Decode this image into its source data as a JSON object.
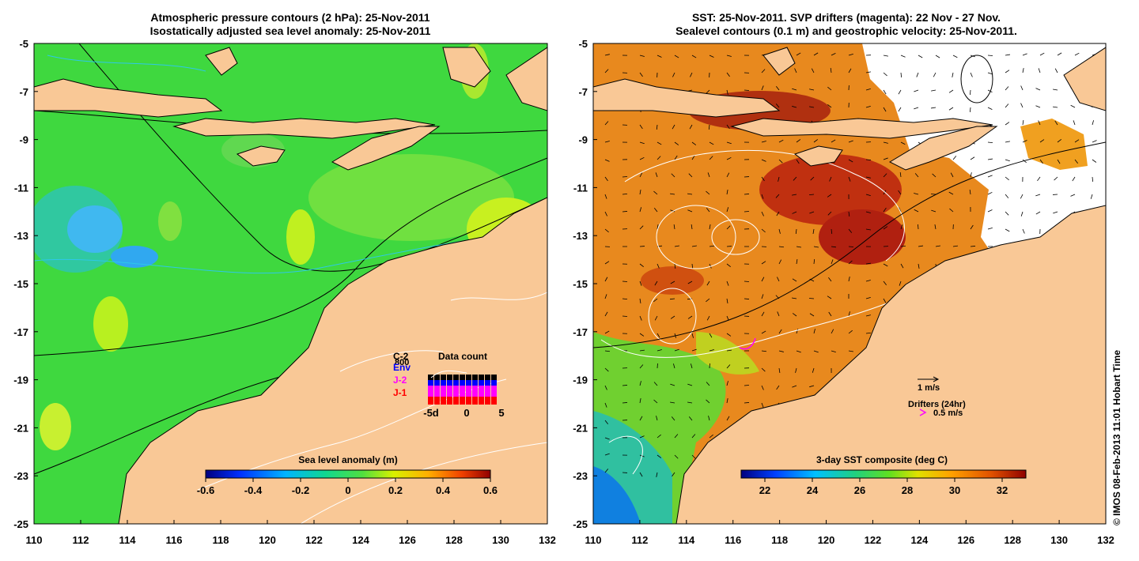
{
  "left_panel": {
    "title_line1": "Atmospheric pressure contours (2 hPa): 25-Nov-2011",
    "title_line2": "Isostatically adjusted sea level anomaly: 25-Nov-2011",
    "colorbar": {
      "label": "Sea level anomaly (m)",
      "range": [
        -0.6,
        0.6
      ],
      "ticks": [
        "-0.6",
        "-0.4",
        "-0.2",
        "0",
        "0.2",
        "0.4",
        "0.6"
      ]
    },
    "data_count": {
      "title": "Data count",
      "satellites": [
        "C-2",
        "Env",
        "J-2",
        "J-1"
      ],
      "satellite_colors": [
        "#000000",
        "#0000ff",
        "#ff00ff",
        "#ff0000"
      ],
      "max_label": "800",
      "x_ticks": [
        "-5d",
        "0",
        "5"
      ]
    }
  },
  "right_panel": {
    "title_line1": "SST: 25-Nov-2011. SVP drifters (magenta): 22 Nov - 27 Nov.",
    "title_line2": "Sealevel contours (0.1 m) and geostrophic velocity: 25-Nov-2011.",
    "colorbar": {
      "label": "3-day SST composite (deg C)",
      "range": [
        21,
        33
      ],
      "ticks": [
        "22",
        "24",
        "26",
        "28",
        "30",
        "32"
      ]
    },
    "legend": {
      "velocity_label": "1 m/s",
      "drifters_label": "Drifters (24hr)",
      "drifter_speed_label": "0.5 m/s"
    }
  },
  "axes": {
    "x_ticks": [
      "110",
      "112",
      "114",
      "116",
      "118",
      "120",
      "122",
      "124",
      "126",
      "128",
      "130",
      "132"
    ],
    "y_ticks": [
      "-5",
      "-7",
      "-9",
      "-11",
      "-13",
      "-15",
      "-17",
      "-19",
      "-21",
      "-23",
      "-25"
    ],
    "lon_range": [
      110,
      132
    ],
    "lat_range": [
      -25,
      -5
    ]
  },
  "colors": {
    "land": "#f9c896",
    "sla_background": "#3fd83f",
    "sst_background": "#e8891e"
  },
  "credit": "© IMOS 08-Feb-2013 11:01 Hobart Time"
}
